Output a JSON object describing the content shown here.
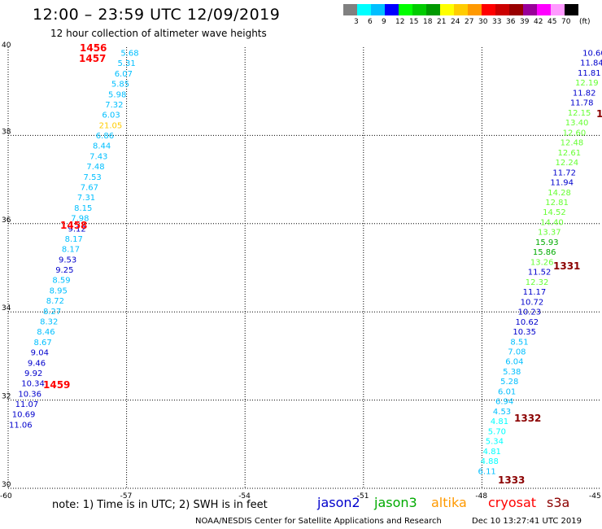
{
  "header": {
    "title": "12:00 – 23:59 UTC 12/09/2019",
    "subtitle": "12 hour collection of altimeter wave heights"
  },
  "legend": {
    "unit": "(ft)",
    "colors": [
      "#808080",
      "#00ffff",
      "#00bfff",
      "#0000ff",
      "#00ff00",
      "#00cc00",
      "#009900",
      "#ffff00",
      "#ffcc00",
      "#ff9900",
      "#ff0000",
      "#cc0000",
      "#990000",
      "#990099",
      "#ff00ff",
      "#ff99ff",
      "#000000"
    ],
    "labels": [
      "3",
      "6",
      "9",
      "12",
      "15",
      "18",
      "21",
      "24",
      "27",
      "30",
      "33",
      "36",
      "39",
      "42",
      "45",
      "70"
    ]
  },
  "chart_data": {
    "type": "scatter",
    "xlim": [
      -60,
      -45
    ],
    "ylim": [
      30,
      40
    ],
    "x_ticks": [
      "-60",
      "-57",
      "-54",
      "-51",
      "-48",
      "-45"
    ],
    "y_ticks": [
      "30",
      "32",
      "34",
      "36",
      "38",
      "40"
    ],
    "tracks": [
      {
        "name": "left",
        "points": [
          {
            "v": "5.68",
            "c": "#00bfff"
          },
          {
            "v": "5.31",
            "c": "#00bfff"
          },
          {
            "v": "6.07",
            "c": "#00bfff"
          },
          {
            "v": "5.85",
            "c": "#00bfff"
          },
          {
            "v": "5.98",
            "c": "#00bfff"
          },
          {
            "v": "7.32",
            "c": "#00bfff"
          },
          {
            "v": "6.03",
            "c": "#00bfff"
          },
          {
            "v": "21.05",
            "c": "#ffcc00"
          },
          {
            "v": "6.86",
            "c": "#00bfff"
          },
          {
            "v": "8.44",
            "c": "#00bfff"
          },
          {
            "v": "7.43",
            "c": "#00bfff"
          },
          {
            "v": "7.48",
            "c": "#00bfff"
          },
          {
            "v": "7.53",
            "c": "#00bfff"
          },
          {
            "v": "7.67",
            "c": "#00bfff"
          },
          {
            "v": "7.31",
            "c": "#00bfff"
          },
          {
            "v": "8.15",
            "c": "#00bfff"
          },
          {
            "v": "7.98",
            "c": "#00bfff"
          },
          {
            "v": "9.12",
            "c": "#0000cc"
          },
          {
            "v": "8.17",
            "c": "#00bfff"
          },
          {
            "v": "8.17",
            "c": "#00bfff"
          },
          {
            "v": "9.53",
            "c": "#0000cc"
          },
          {
            "v": "9.25",
            "c": "#0000cc"
          },
          {
            "v": "8.59",
            "c": "#00bfff"
          },
          {
            "v": "8.95",
            "c": "#00bfff"
          },
          {
            "v": "8.72",
            "c": "#00bfff"
          },
          {
            "v": "8.27",
            "c": "#00bfff"
          },
          {
            "v": "8.32",
            "c": "#00bfff"
          },
          {
            "v": "8.46",
            "c": "#00bfff"
          },
          {
            "v": "8.67",
            "c": "#00bfff"
          },
          {
            "v": "9.04",
            "c": "#0000cc"
          },
          {
            "v": "9.46",
            "c": "#0000cc"
          },
          {
            "v": "9.92",
            "c": "#0000cc"
          },
          {
            "v": "10.34",
            "c": "#0000cc"
          },
          {
            "v": "10.36",
            "c": "#0000cc"
          },
          {
            "v": "11.07",
            "c": "#0000cc"
          },
          {
            "v": "10.69",
            "c": "#0000cc"
          },
          {
            "v": "11.06",
            "c": "#0000cc"
          }
        ]
      },
      {
        "name": "right",
        "points": [
          {
            "v": "10.60",
            "c": "#0000cc"
          },
          {
            "v": "11.84",
            "c": "#0000cc"
          },
          {
            "v": "11.81",
            "c": "#0000cc"
          },
          {
            "v": "12.19",
            "c": "#66ff33"
          },
          {
            "v": "11.82",
            "c": "#0000cc"
          },
          {
            "v": "11.78",
            "c": "#0000cc"
          },
          {
            "v": "12.15",
            "c": "#66ff33"
          },
          {
            "v": "13.40",
            "c": "#66ff33"
          },
          {
            "v": "12.60",
            "c": "#66ff33"
          },
          {
            "v": "12.48",
            "c": "#66ff33"
          },
          {
            "v": "12.61",
            "c": "#66ff33"
          },
          {
            "v": "12.24",
            "c": "#66ff33"
          },
          {
            "v": "11.72",
            "c": "#0000cc"
          },
          {
            "v": "11.94",
            "c": "#0000cc"
          },
          {
            "v": "14.28",
            "c": "#66ff33"
          },
          {
            "v": "12.81",
            "c": "#66ff33"
          },
          {
            "v": "14.52",
            "c": "#66ff33"
          },
          {
            "v": "14.40",
            "c": "#66ff33"
          },
          {
            "v": "13.37",
            "c": "#66ff33"
          },
          {
            "v": "15.93",
            "c": "#00aa00"
          },
          {
            "v": "15.86",
            "c": "#00aa00"
          },
          {
            "v": "13.26",
            "c": "#66ff33"
          },
          {
            "v": "11.52",
            "c": "#0000cc"
          },
          {
            "v": "12.32",
            "c": "#66ff33"
          },
          {
            "v": "11.17",
            "c": "#0000cc"
          },
          {
            "v": "10.72",
            "c": "#0000cc"
          },
          {
            "v": "10.23",
            "c": "#0000cc"
          },
          {
            "v": "10.62",
            "c": "#0000cc"
          },
          {
            "v": "10.35",
            "c": "#0000cc"
          },
          {
            "v": "8.51",
            "c": "#00bfff"
          },
          {
            "v": "7.08",
            "c": "#00bfff"
          },
          {
            "v": "6.04",
            "c": "#00bfff"
          },
          {
            "v": "5.38",
            "c": "#00bfff"
          },
          {
            "v": "5.28",
            "c": "#00bfff"
          },
          {
            "v": "6.01",
            "c": "#00bfff"
          },
          {
            "v": "6.94",
            "c": "#00bfff"
          },
          {
            "v": "4.53",
            "c": "#00bfff"
          },
          {
            "v": "4.81",
            "c": "#00ffff"
          },
          {
            "v": "5.70",
            "c": "#00ffff"
          },
          {
            "v": "5.34",
            "c": "#00ffff"
          },
          {
            "v": "4.81",
            "c": "#00ffff"
          },
          {
            "v": "4.88",
            "c": "#00ffff"
          },
          {
            "v": "6.11",
            "c": "#00bfff"
          }
        ]
      }
    ],
    "time_labels": [
      {
        "t": "1456",
        "c": "#ff0000"
      },
      {
        "t": "1457",
        "c": "#ff0000"
      },
      {
        "t": "1458",
        "c": "#ff0000"
      },
      {
        "t": "1459",
        "c": "#ff0000"
      },
      {
        "t": "1331",
        "c": "#8b0000"
      },
      {
        "t": "1332",
        "c": "#8b0000"
      },
      {
        "t": "1333",
        "c": "#8b0000"
      },
      {
        "t": "1",
        "c": "#8b0000"
      }
    ]
  },
  "note": "note:  1) Time is in UTC; 2) SWH is in feet",
  "satellites": [
    {
      "name": "jason2",
      "color": "#0000cc"
    },
    {
      "name": "jason3",
      "color": "#00aa00"
    },
    {
      "name": "altika",
      "color": "#ff9900"
    },
    {
      "name": "cryosat",
      "color": "#ff0000"
    },
    {
      "name": "s3a",
      "color": "#8b0000"
    }
  ],
  "footer": "NOAA/NESDIS Center for Satellite Applications and Research",
  "timestamp": "Dec 10 13:27:41 UTC 2019"
}
